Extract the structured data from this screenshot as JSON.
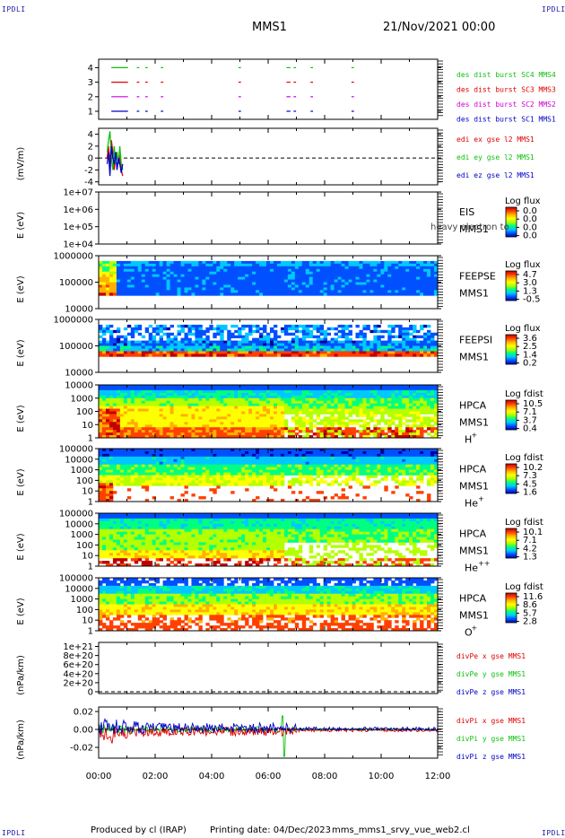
{
  "header": {
    "corner_left_top": "IPDLI",
    "corner_right_top": "IPDLI",
    "corner_left_bottom": "IPDLI",
    "corner_right_bottom": "IPDLI",
    "mission": "MMS1",
    "datetime": "21/Nov/2021 00:00"
  },
  "footer": {
    "produced_by": "Produced by cl (IRAP)",
    "printing_date": "Printing date: 04/Dec/2023",
    "file_name": "mms_mms1_srvy_vue_web2.cl"
  },
  "colors": {
    "red": "#e00000",
    "green": "#10c010",
    "blue": "#0000c8",
    "magenta": "#d000d0",
    "spectrogram_scale": [
      "#0000a0",
      "#0050ff",
      "#00c8ff",
      "#00ff80",
      "#b4ff00",
      "#ffff00",
      "#ffb000",
      "#ff4000",
      "#c00000"
    ]
  },
  "chart_data": [
    {
      "type": "line",
      "id": "burst",
      "xlim": [
        0,
        12
      ],
      "xticks": [
        "00:00",
        "02:00",
        "04:00",
        "06:00",
        "08:00",
        "10:00",
        "12:00"
      ],
      "yticks": [
        "4",
        "3",
        "2",
        "1"
      ],
      "ylabel": "",
      "series": [
        {
          "name": "des dist burst SC1 MMS1",
          "color": "#0000c8",
          "level": 1,
          "intervals": [
            [
              0.45,
              1.0
            ],
            [
              1.35,
              1.4
            ],
            [
              1.65,
              1.7
            ],
            [
              2.2,
              2.25
            ],
            [
              4.95,
              5.0
            ],
            [
              6.65,
              6.75
            ],
            [
              6.9,
              6.95
            ],
            [
              7.5,
              7.55
            ],
            [
              8.95,
              9.0
            ]
          ]
        },
        {
          "name": "des dist burst SC2 MMS2",
          "color": "#d000d0",
          "level": 2,
          "intervals": [
            [
              0.45,
              1.0
            ],
            [
              1.35,
              1.4
            ],
            [
              1.65,
              1.7
            ],
            [
              2.2,
              2.25
            ],
            [
              4.95,
              5.0
            ],
            [
              6.65,
              6.75
            ],
            [
              6.9,
              6.95
            ],
            [
              7.5,
              7.55
            ],
            [
              8.95,
              9.0
            ]
          ]
        },
        {
          "name": "des dist burst SC3 MMS3",
          "color": "#e00000",
          "level": 3,
          "intervals": [
            [
              0.45,
              1.0
            ],
            [
              1.35,
              1.4
            ],
            [
              1.65,
              1.7
            ],
            [
              2.2,
              2.25
            ],
            [
              4.95,
              5.0
            ],
            [
              6.65,
              6.75
            ],
            [
              6.9,
              6.95
            ],
            [
              7.5,
              7.55
            ],
            [
              8.95,
              9.0
            ]
          ]
        },
        {
          "name": "des dist burst SC4 MMS4",
          "color": "#10c010",
          "level": 4,
          "intervals": [
            [
              0.45,
              1.0
            ],
            [
              1.35,
              1.4
            ],
            [
              1.65,
              1.7
            ],
            [
              2.2,
              2.25
            ],
            [
              4.95,
              5.0
            ],
            [
              6.65,
              6.75
            ],
            [
              6.9,
              6.95
            ],
            [
              7.5,
              7.55
            ],
            [
              8.95,
              9.0
            ]
          ]
        }
      ]
    },
    {
      "type": "line",
      "id": "edi",
      "ylabel": "(mV/m)",
      "ylim": [
        -4.5,
        5
      ],
      "yticks": [
        "4",
        "2",
        "0",
        "-2",
        "-4"
      ],
      "yticks_val": [
        4,
        2,
        0,
        -2,
        -4
      ],
      "zero_line": true,
      "series": [
        {
          "name": "edi ex gse l2 MMS1",
          "color": "#e00000",
          "x": [
            0.3,
            0.35,
            0.4,
            0.45,
            0.5,
            0.55,
            0.6,
            0.65,
            0.7,
            0.75,
            0.8,
            0.85
          ],
          "y": [
            0,
            2,
            -1,
            3,
            1,
            -2,
            0,
            1,
            -1,
            0.5,
            -2,
            -3
          ]
        },
        {
          "name": "edi ey gse l2 MMS1",
          "color": "#10c010",
          "x": [
            0.3,
            0.35,
            0.4,
            0.45,
            0.5,
            0.55,
            0.6,
            0.65,
            0.7,
            0.75,
            0.8,
            0.85
          ],
          "y": [
            1,
            3,
            4.5,
            0,
            -2,
            2,
            -1,
            1,
            -1,
            2,
            -1,
            -2
          ]
        },
        {
          "name": "edi ez gse l2 MMS1",
          "color": "#0000c8",
          "x": [
            0.3,
            0.35,
            0.4,
            0.45,
            0.5,
            0.55,
            0.6,
            0.65,
            0.7,
            0.75,
            0.8,
            0.85
          ],
          "y": [
            -1,
            1,
            -3,
            2,
            0,
            -1,
            1,
            -2,
            0,
            -1,
            -2.5,
            -1
          ]
        }
      ]
    },
    {
      "type": "heatmap",
      "id": "eis",
      "ylabel": "E (eV)",
      "yticks": [
        "1e+07",
        "1e+06",
        "1e+05",
        "1e+04"
      ],
      "labels": [
        "EIS",
        "MMS1"
      ],
      "overlay_text": "heavy electron to",
      "colorbar_title": "Log flux",
      "colorbar_ticks": [
        "0.0",
        "0.0",
        "0.0",
        "0.0"
      ],
      "empty": true
    },
    {
      "type": "heatmap",
      "id": "feepse",
      "ylabel": "E (eV)",
      "yticks": [
        "1000000",
        "100000",
        "10000"
      ],
      "labels": [
        "FEEPSE",
        "MMS1"
      ],
      "colorbar_title": "Log flux",
      "colorbar_ticks": [
        "4.7",
        "3.0",
        "1.3",
        "-0.5"
      ]
    },
    {
      "type": "heatmap",
      "id": "feepsi",
      "ylabel": "E (eV)",
      "yticks": [
        "1000000",
        "100000",
        "10000"
      ],
      "labels": [
        "FEEPSI",
        "MMS1"
      ],
      "colorbar_title": "Log flux",
      "colorbar_ticks": [
        "3.6",
        "2.5",
        "1.4",
        "0.2"
      ]
    },
    {
      "type": "heatmap",
      "id": "hpca_h",
      "ylabel": "E (eV)",
      "yticks": [
        "10000",
        "1000",
        "100",
        "10",
        "1"
      ],
      "labels": [
        "HPCA",
        "MMS1"
      ],
      "species": "H",
      "species_sup": "+",
      "colorbar_title": "Log fdist",
      "colorbar_ticks": [
        "10.5",
        "7.1",
        "3.7",
        "0.4"
      ]
    },
    {
      "type": "heatmap",
      "id": "hpca_he",
      "ylabel": "E (eV)",
      "yticks": [
        "100000",
        "10000",
        "1000",
        "100",
        "10",
        "1"
      ],
      "labels": [
        "HPCA",
        "MMS1"
      ],
      "species": "He",
      "species_sup": "+",
      "colorbar_title": "Log fdist",
      "colorbar_ticks": [
        "10.2",
        "7.3",
        "4.5",
        "1.6"
      ]
    },
    {
      "type": "heatmap",
      "id": "hpca_hepp",
      "ylabel": "E (eV)",
      "yticks": [
        "100000",
        "10000",
        "1000",
        "100",
        "10",
        "1"
      ],
      "labels": [
        "HPCA",
        "MMS1"
      ],
      "species": "He",
      "species_sup": "++",
      "colorbar_title": "Log fdist",
      "colorbar_ticks": [
        "10.1",
        "7.1",
        "4.2",
        "1.3"
      ]
    },
    {
      "type": "heatmap",
      "id": "hpca_o",
      "ylabel": "E (eV)",
      "yticks": [
        "100000",
        "10000",
        "1000",
        "100",
        "10",
        "1"
      ],
      "labels": [
        "HPCA",
        "MMS1"
      ],
      "species": "O",
      "species_sup": "+",
      "colorbar_title": "Log fdist",
      "colorbar_ticks": [
        "11.6",
        "8.6",
        "5.7",
        "2.8"
      ]
    },
    {
      "type": "line",
      "id": "divpe",
      "ylabel": "(nPa/km)",
      "yticks": [
        "1e+21",
        "8e+20",
        "6e+20",
        "4e+20",
        "2e+20",
        "0"
      ],
      "yticks_val": [
        1.0,
        0.8,
        0.6,
        0.4,
        0.2,
        0
      ],
      "ylim": [
        0,
        1.05
      ],
      "zero_line": true,
      "series": [
        {
          "name": "divPe x gse MMS1",
          "color": "#e00000"
        },
        {
          "name": "divPe y gse MMS1",
          "color": "#10c010"
        },
        {
          "name": "divPe z gse MMS1",
          "color": "#0000c8"
        }
      ]
    },
    {
      "type": "line",
      "id": "divpi",
      "ylabel": "(nPa/km)",
      "yticks": [
        "0.02",
        "0.00",
        "-0.02"
      ],
      "yticks_val": [
        0.02,
        0.0,
        -0.02
      ],
      "ylim": [
        -0.032,
        0.025
      ],
      "series": [
        {
          "name": "divPi x gse MMS1",
          "color": "#e00000"
        },
        {
          "name": "divPi y gse MMS1",
          "color": "#10c010"
        },
        {
          "name": "divPi z gse MMS1",
          "color": "#0000c8"
        }
      ]
    }
  ]
}
